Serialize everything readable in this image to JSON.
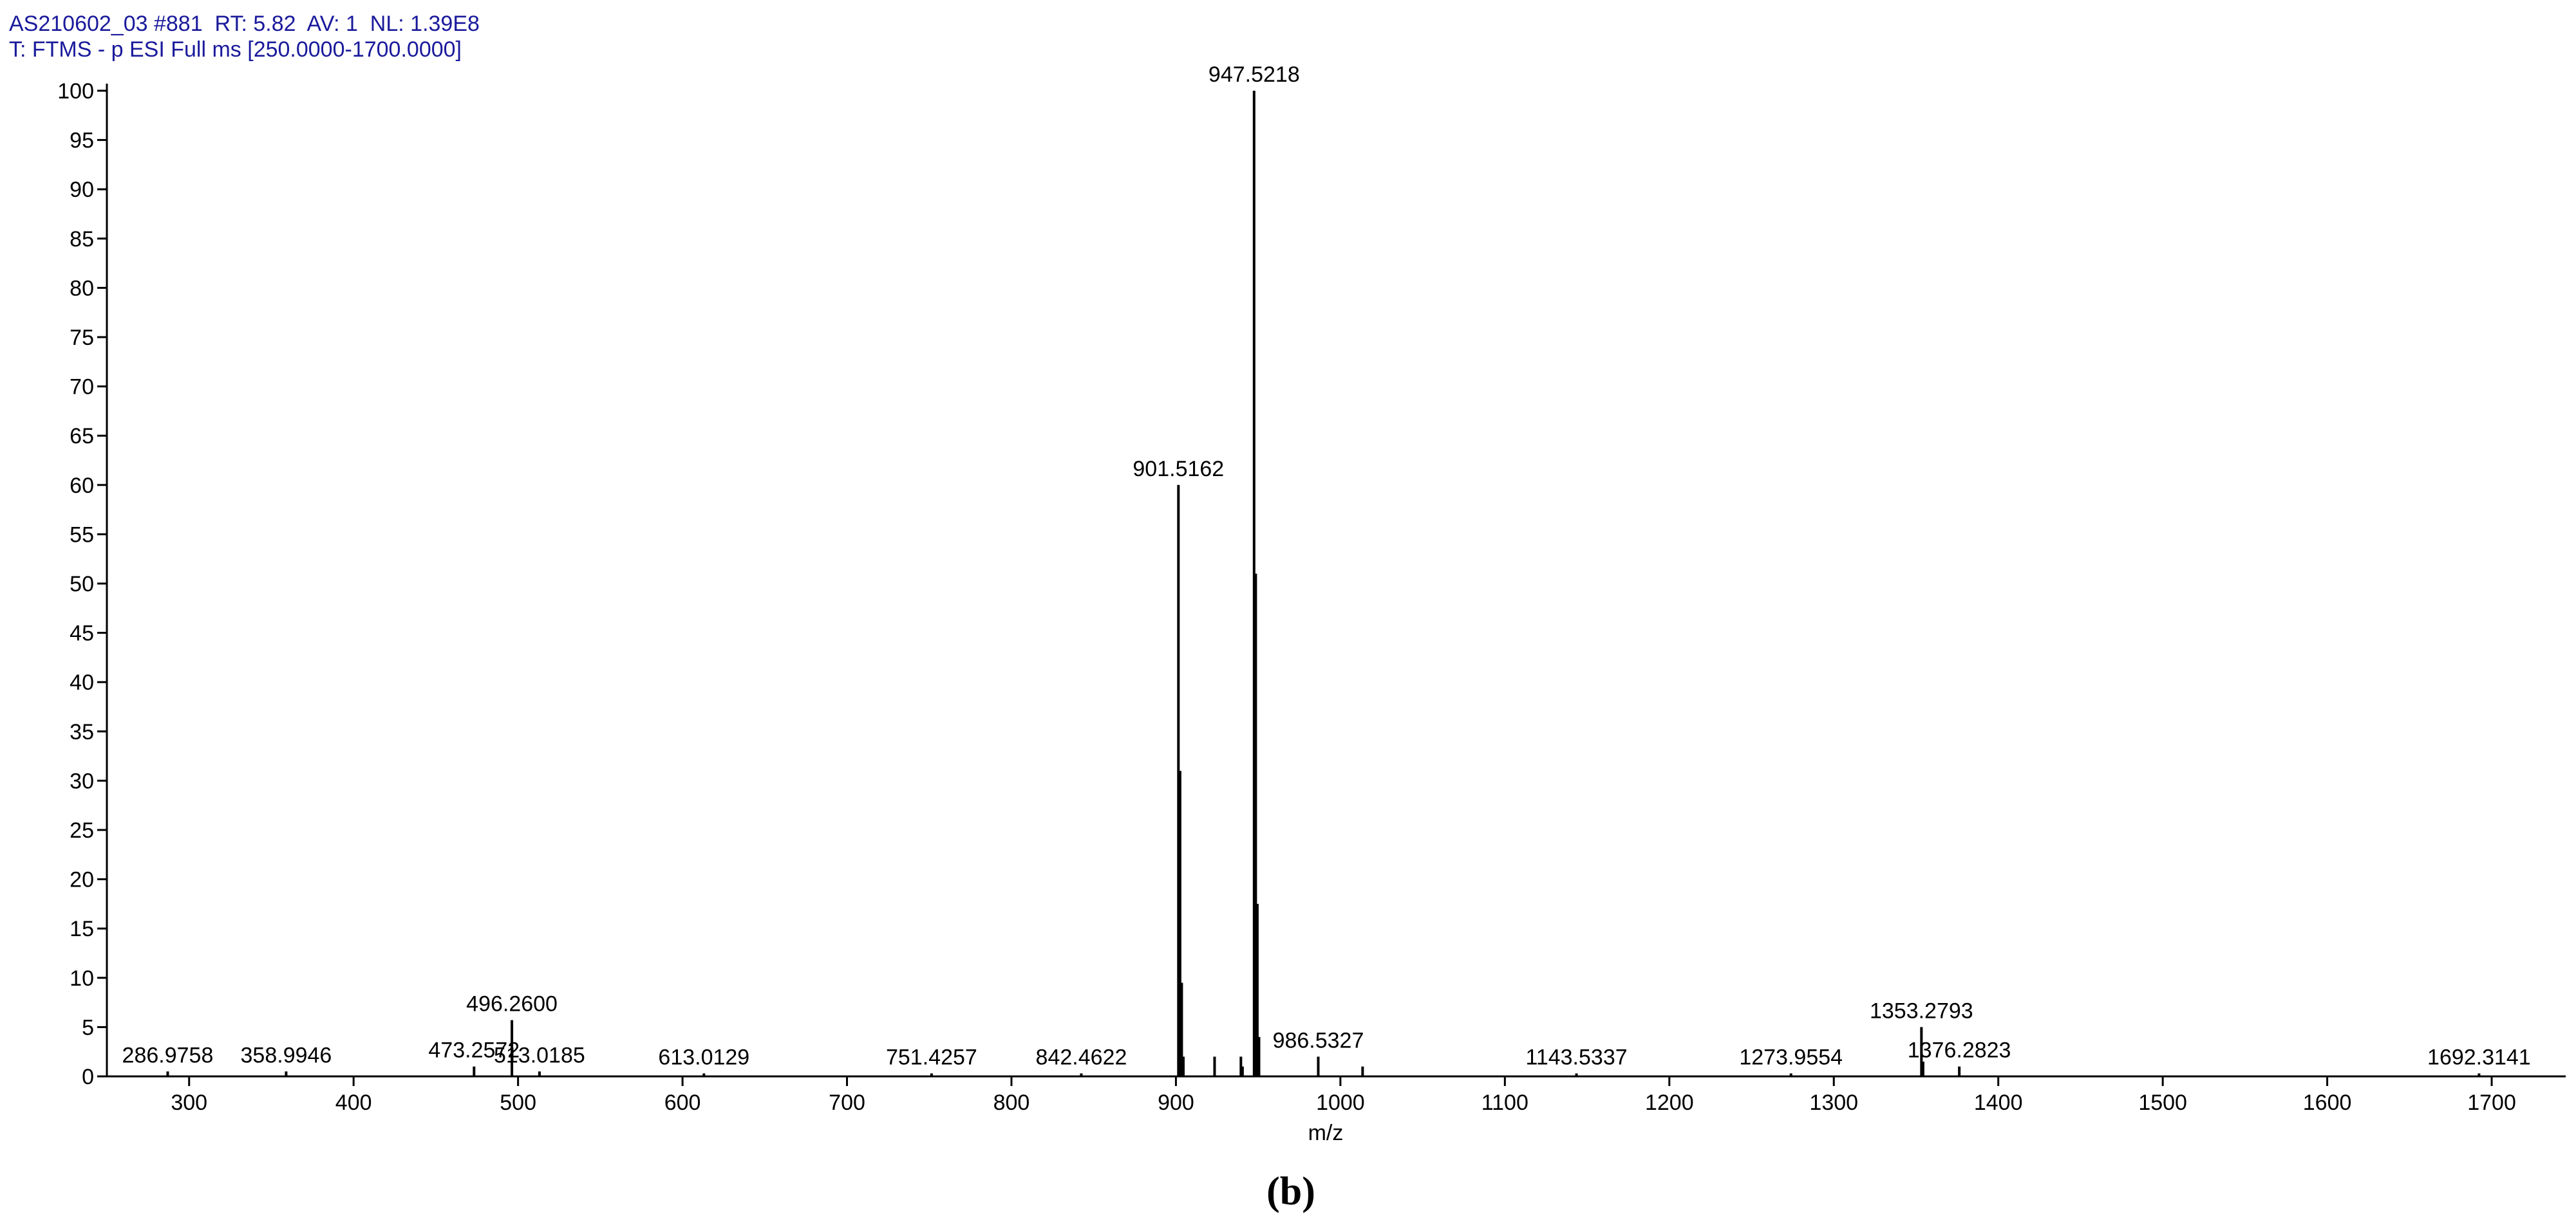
{
  "chart_data": {
    "type": "stem",
    "header": [
      "AS210602_03 #881  RT: 5.82  AV: 1  NL: 1.39E8",
      "T: FTMS - p ESI Full ms [250.0000-1700.0000]"
    ],
    "xlabel": "m/z",
    "caption": "(b)",
    "color": "#000000",
    "xlim": [
      250,
      1745
    ],
    "ylim": [
      0,
      100
    ],
    "xticks": [
      300,
      400,
      500,
      600,
      700,
      800,
      900,
      1000,
      1100,
      1200,
      1300,
      1400,
      1500,
      1600,
      1700
    ],
    "yticks": [
      0,
      5,
      10,
      15,
      20,
      25,
      30,
      35,
      40,
      45,
      50,
      55,
      60,
      65,
      70,
      75,
      80,
      85,
      90,
      95,
      100
    ],
    "x": [
      286.9758,
      358.9946,
      473.2572,
      496.26,
      513.0185,
      613.0129,
      751.4257,
      842.4622,
      901.5162,
      902.52,
      903.52,
      904.52,
      923.5,
      939.5,
      940.5,
      947.5218,
      948.52,
      949.52,
      950.52,
      986.5327,
      1013.5,
      1143.5337,
      1273.9554,
      1353.2793,
      1354.28,
      1376.2823,
      1692.3141
    ],
    "values": [
      0.5,
      0.5,
      1,
      5.7,
      0.5,
      0.3,
      0.3,
      0.3,
      60,
      31,
      9.5,
      2,
      2,
      2,
      1,
      100,
      51,
      17.5,
      4,
      2,
      1,
      0.3,
      0.3,
      5,
      1.5,
      1,
      0.3
    ],
    "x_labels": [
      "286.9758",
      "358.9946",
      "473.2572",
      "496.2600",
      "513.0185",
      "613.0129",
      "751.4257",
      "842.4622",
      "901.5162",
      null,
      null,
      null,
      null,
      null,
      null,
      "947.5218",
      null,
      null,
      null,
      "986.5327",
      null,
      "1143.5337",
      "1273.9554",
      "1353.2793",
      null,
      "1376.2823",
      "1692.3141"
    ]
  }
}
